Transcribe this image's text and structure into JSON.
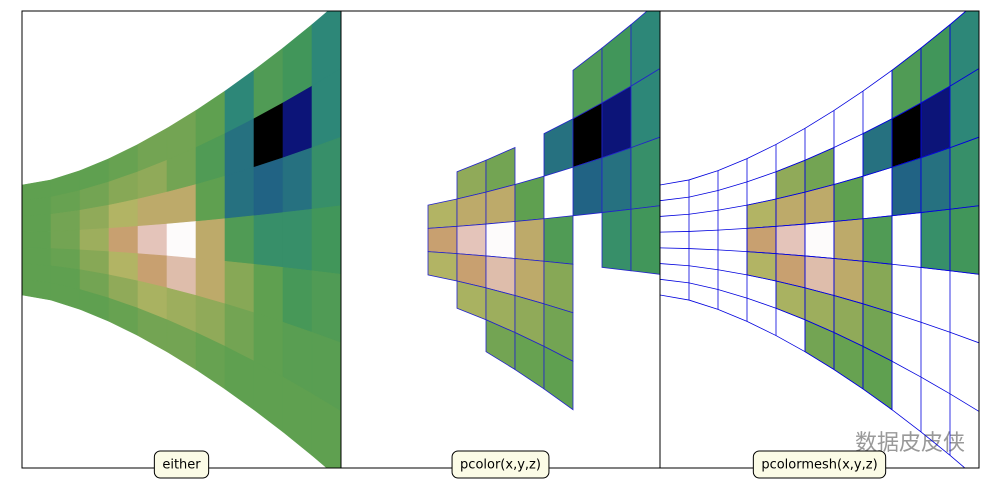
{
  "chart_data": [
    {
      "type": "pcolor",
      "label": "either",
      "edges": false,
      "colormap": "gist_earth",
      "z": [
        [
          0.5,
          0.5,
          0.5,
          0.52,
          0.55,
          0.55,
          0.5,
          0.3,
          0.45,
          0.4,
          0.3
        ],
        [
          0.5,
          0.52,
          0.55,
          0.6,
          0.62,
          0.55,
          0.45,
          0.25,
          0,
          0.1,
          0.3
        ],
        [
          0.5,
          0.55,
          0.62,
          0.7,
          0.75,
          0.75,
          0.5,
          0.25,
          0.22,
          0.25,
          0.35
        ],
        [
          0.5,
          0.55,
          0.65,
          0.8,
          0.9,
          1,
          0.75,
          0.45,
          0.35,
          0.35,
          0.4
        ],
        [
          0.5,
          0.52,
          0.6,
          0.7,
          0.8,
          0.88,
          0.75,
          0.6,
          0.5,
          0.42,
          0.45
        ],
        [
          0.5,
          0.5,
          0.55,
          0.62,
          0.68,
          0.65,
          0.62,
          0.55,
          0.5,
          0.48,
          0.48
        ],
        [
          0.5,
          0.5,
          0.5,
          0.52,
          0.55,
          0.55,
          0.52,
          0.5,
          0.5,
          0.5,
          0.5
        ]
      ]
    },
    {
      "type": "pcolor",
      "label": "pcolor(x,y,z)",
      "edges": true,
      "colormap": "gist_earth",
      "z": [
        [
          null,
          null,
          null,
          null,
          null,
          null,
          null,
          null,
          0.45,
          0.4,
          0.3
        ],
        [
          null,
          null,
          null,
          null,
          0.62,
          0.55,
          null,
          0.25,
          0,
          0.1,
          0.3
        ],
        [
          null,
          null,
          null,
          0.7,
          0.75,
          0.75,
          0.5,
          null,
          0.22,
          0.25,
          0.35
        ],
        [
          null,
          null,
          null,
          0.8,
          0.9,
          1,
          0.75,
          0.45,
          null,
          0.35,
          0.4
        ],
        [
          null,
          null,
          null,
          0.7,
          0.8,
          0.88,
          0.75,
          0.6,
          null,
          null,
          null
        ],
        [
          null,
          null,
          null,
          null,
          0.68,
          0.65,
          0.62,
          0.55,
          null,
          null,
          null
        ],
        [
          null,
          null,
          null,
          null,
          null,
          0.55,
          0.52,
          0.5,
          null,
          null,
          null
        ]
      ]
    },
    {
      "type": "pcolormesh",
      "label": "pcolormesh(x,y,z)",
      "edges": true,
      "colormap": "gist_earth",
      "z": [
        [
          null,
          null,
          null,
          null,
          null,
          null,
          null,
          null,
          0.45,
          0.4,
          0.3
        ],
        [
          null,
          null,
          null,
          null,
          0.62,
          0.55,
          null,
          0.25,
          0,
          0.1,
          0.3
        ],
        [
          null,
          null,
          null,
          0.7,
          0.75,
          0.75,
          0.5,
          null,
          0.22,
          0.25,
          0.35
        ],
        [
          null,
          null,
          null,
          0.8,
          0.9,
          1,
          0.75,
          0.45,
          null,
          0.35,
          0.4
        ],
        [
          null,
          null,
          null,
          0.7,
          0.8,
          0.88,
          0.75,
          0.6,
          null,
          null,
          null
        ],
        [
          null,
          null,
          null,
          null,
          0.68,
          0.65,
          0.62,
          0.55,
          null,
          null,
          null
        ],
        [
          null,
          null,
          null,
          null,
          null,
          0.55,
          0.52,
          0.5,
          null,
          null,
          null
        ]
      ]
    }
  ],
  "watermark": "数据皮皮侠"
}
